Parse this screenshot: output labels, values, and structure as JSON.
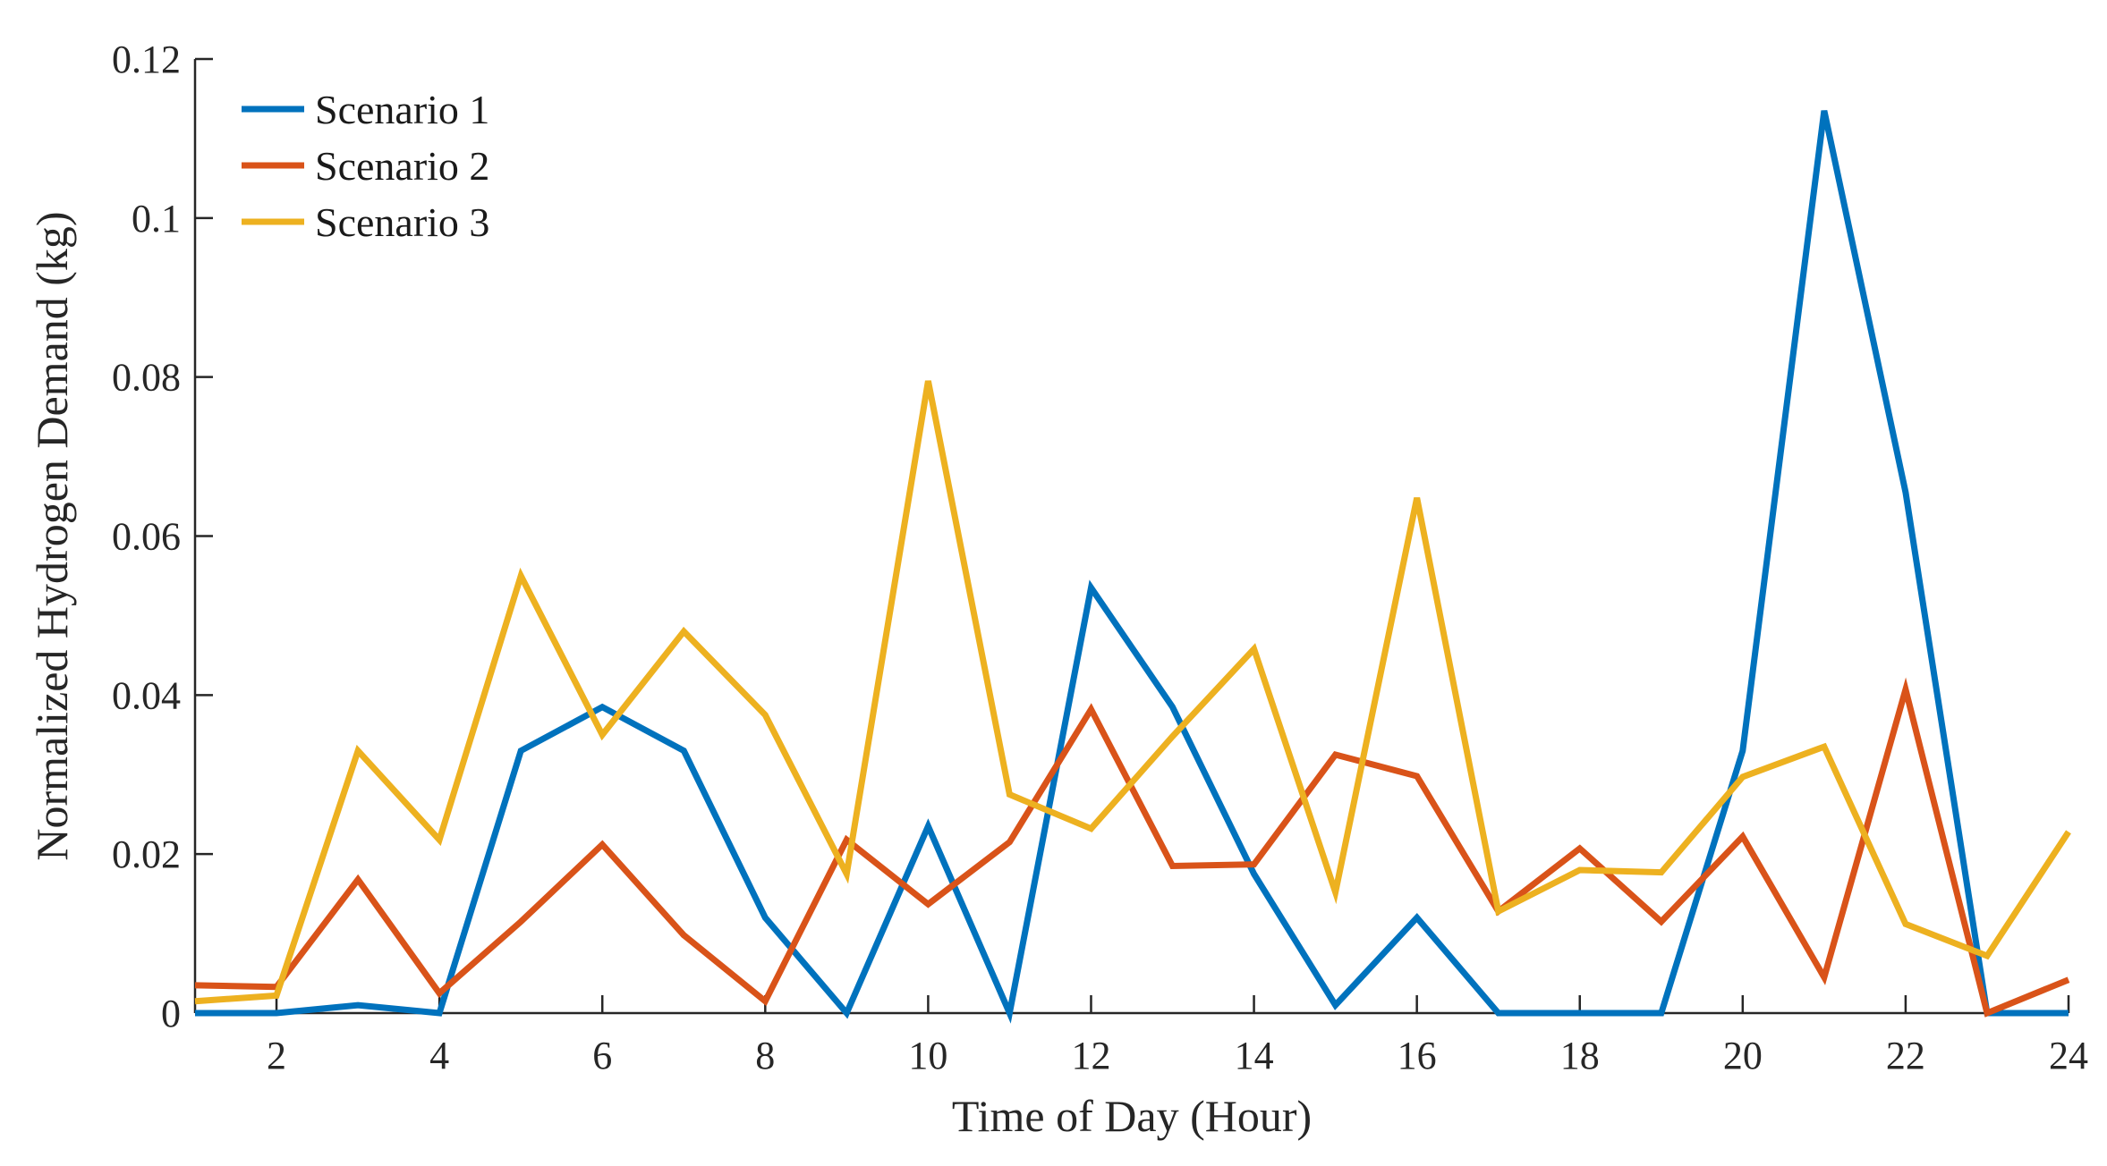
{
  "chart_data": {
    "type": "line",
    "title": "",
    "xlabel": "Time of Day (Hour)",
    "ylabel": "Normalized Hydrogen Demand (kg)",
    "xlim": [
      1,
      24
    ],
    "ylim": [
      0,
      0.12
    ],
    "xticks": [
      2,
      4,
      6,
      8,
      10,
      12,
      14,
      16,
      18,
      20,
      22,
      24
    ],
    "xtick_labels": [
      "2",
      "4",
      "6",
      "8",
      "10",
      "12",
      "14",
      "16",
      "18",
      "20",
      "22",
      "24"
    ],
    "yticks": [
      0,
      0.02,
      0.04,
      0.06,
      0.08,
      0.1,
      0.12
    ],
    "ytick_labels": [
      "0",
      "0.02",
      "0.04",
      "0.06",
      "0.08",
      "0.1",
      "0.12"
    ],
    "grid": false,
    "legend_position": "top-left",
    "x": [
      1,
      2,
      3,
      4,
      5,
      6,
      7,
      8,
      9,
      10,
      11,
      12,
      13,
      14,
      15,
      16,
      17,
      18,
      19,
      20,
      21,
      22,
      23,
      24
    ],
    "series": [
      {
        "name": "Scenario 1",
        "color": "#0072BD",
        "values": [
          0,
          0,
          0.001,
          0,
          0.033,
          0.0385,
          0.033,
          0.012,
          0,
          0.0235,
          0,
          0.0535,
          0.0385,
          0.0175,
          0.001,
          0.012,
          0,
          0,
          0,
          0.033,
          0.1135,
          0.0655,
          0,
          0
        ]
      },
      {
        "name": "Scenario 2",
        "color": "#D95319",
        "values": [
          0.0035,
          0.0033,
          0.0168,
          0.0025,
          0.0115,
          0.0212,
          0.0098,
          0.0015,
          0.0218,
          0.0137,
          0.0215,
          0.0382,
          0.0185,
          0.0187,
          0.0325,
          0.0298,
          0.0128,
          0.0207,
          0.0115,
          0.0222,
          0.0045,
          0.0407,
          0,
          0.0042
        ]
      },
      {
        "name": "Scenario 3",
        "color": "#EDB120",
        "values": [
          0.0015,
          0.0022,
          0.033,
          0.0218,
          0.055,
          0.035,
          0.048,
          0.0375,
          0.0175,
          0.0795,
          0.0275,
          0.0232,
          0.0348,
          0.0458,
          0.0152,
          0.0648,
          0.0128,
          0.018,
          0.0177,
          0.0297,
          0.0335,
          0.0112,
          0.0072,
          0.0228
        ]
      }
    ]
  }
}
